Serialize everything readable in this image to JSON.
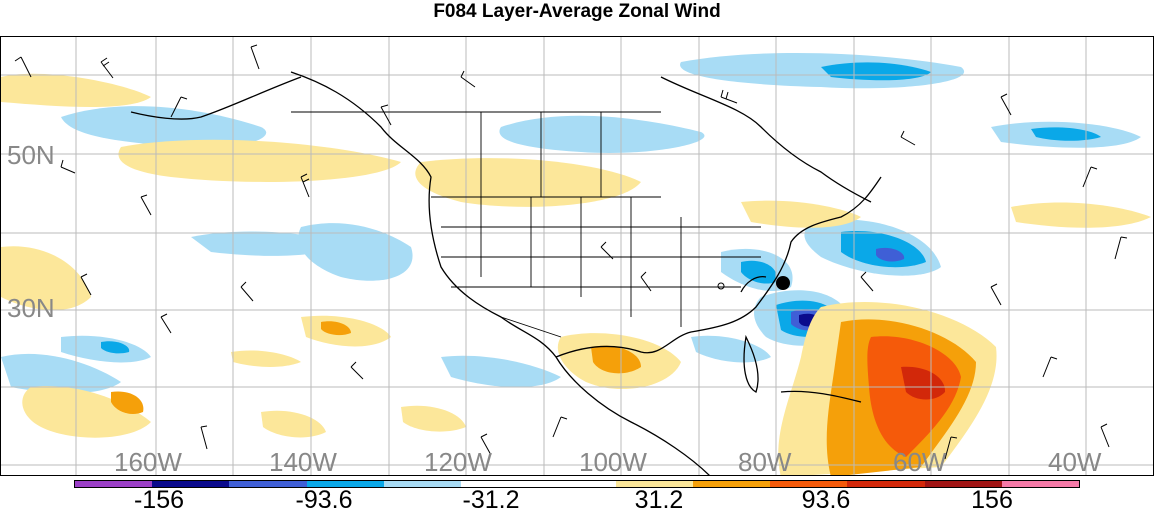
{
  "title": "F084 Layer-Average Zonal Wind",
  "map": {
    "lat_labels": [
      "50N",
      "30N"
    ],
    "lon_labels": [
      "160W",
      "140W",
      "120W",
      "100W",
      "80W",
      "60W",
      "40W"
    ]
  },
  "colorbar": {
    "colors": [
      "#9b3fc7",
      "#0a0a8c",
      "#3f5fd6",
      "#0aa8e8",
      "#a8dcf5",
      "#ffffff",
      "#ffffff",
      "#fce79a",
      "#f5a00a",
      "#f55a0a",
      "#d2280a",
      "#a01414",
      "#f57aa8"
    ],
    "labels": [
      "-156",
      "-93.6",
      "-31.2",
      "31.2",
      "93.6",
      "156"
    ]
  }
}
